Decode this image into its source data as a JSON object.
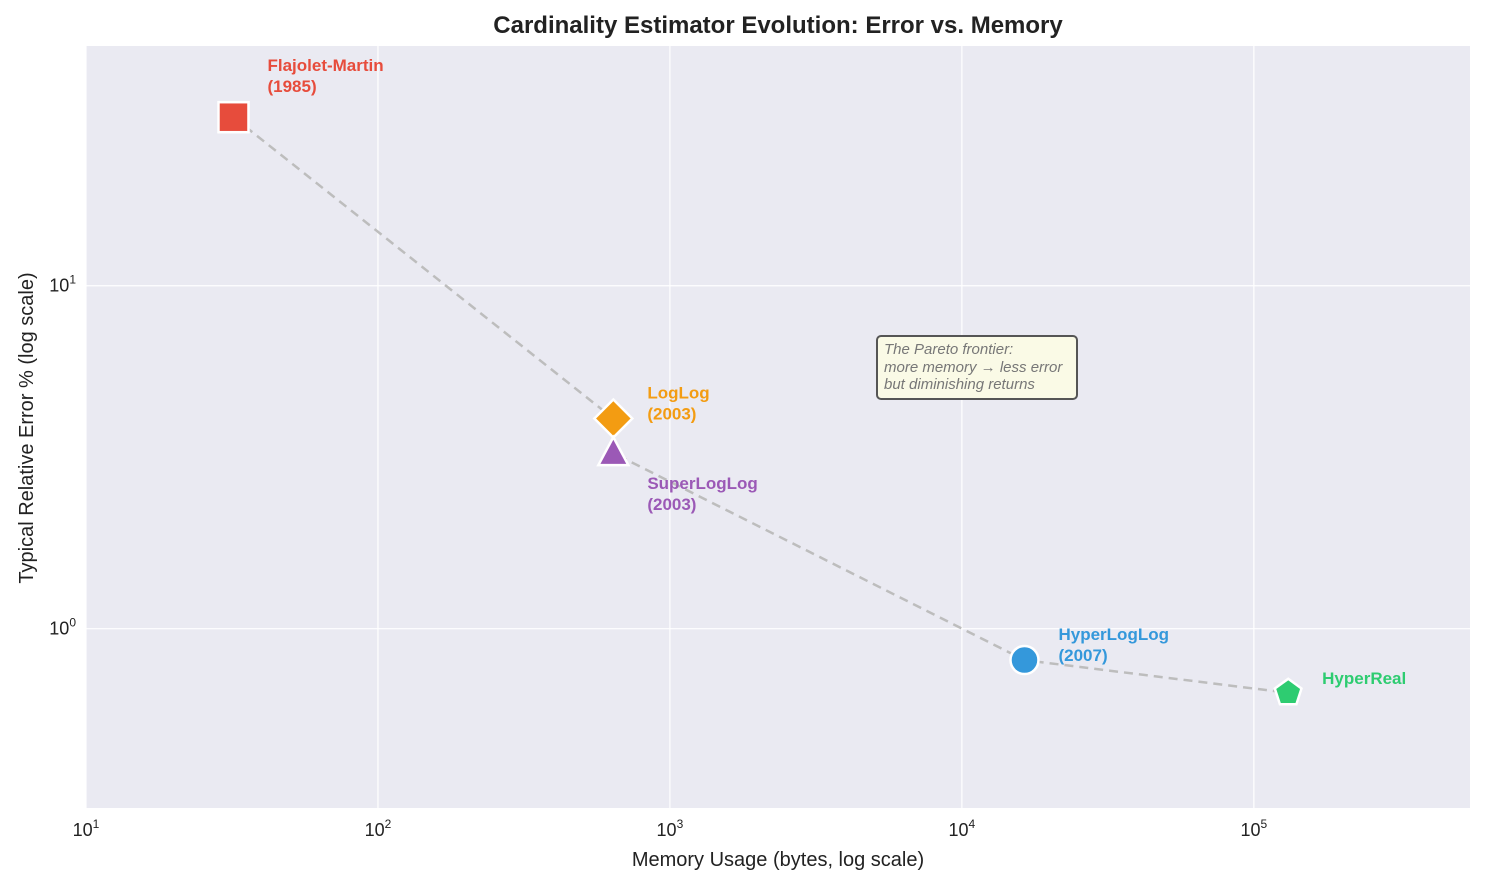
{
  "chart_data": {
    "type": "scatter",
    "title": "Cardinality Estimator Evolution: Error vs. Memory",
    "xlabel": "Memory Usage (bytes, log scale)",
    "ylabel": "Typical Relative Error %  (log scale)",
    "xscale": "log",
    "yscale": "log",
    "xlim": [
      10,
      550000
    ],
    "ylim": [
      0.3,
      50
    ],
    "x_ticks": [
      {
        "base": "10",
        "exp": "1"
      },
      {
        "base": "10",
        "exp": "2"
      },
      {
        "base": "10",
        "exp": "3"
      },
      {
        "base": "10",
        "exp": "4"
      },
      {
        "base": "10",
        "exp": "5"
      }
    ],
    "y_ticks": [
      {
        "base": "10",
        "exp": "0"
      },
      {
        "base": "10",
        "exp": "1"
      }
    ],
    "grid": true,
    "frontier_line": "dashed",
    "points": [
      {
        "name": "Flajolet-Martin",
        "year": "(1985)",
        "x": 32,
        "y": 31,
        "marker": "square",
        "color": "#e74c3c"
      },
      {
        "name": "LogLog",
        "year": "(2003)",
        "x": 640,
        "y": 4.1,
        "marker": "diamond",
        "color": "#f39c12"
      },
      {
        "name": "SuperLogLog",
        "year": "(2003)",
        "x": 640,
        "y": 3.25,
        "marker": "triangle",
        "color": "#9b59b6"
      },
      {
        "name": "HyperLogLog",
        "year": "(2007)",
        "x": 16384,
        "y": 0.81,
        "marker": "circle",
        "color": "#3498db"
      },
      {
        "name": "HyperReal",
        "year": "",
        "x": 131072,
        "y": 0.65,
        "marker": "pentagon",
        "color": "#2ecc71"
      }
    ],
    "annotation": {
      "lines": [
        "The Pareto frontier:",
        "more memory → less error",
        "but diminishing returns"
      ]
    }
  }
}
